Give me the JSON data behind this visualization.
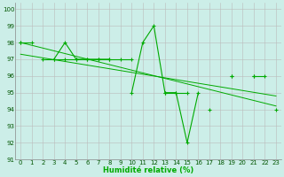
{
  "title": "",
  "xlabel": "Humidité relative (%)",
  "ylabel": "",
  "bg_color": "#cceee8",
  "grid_color": "#bbbbbb",
  "line_color": "#00aa00",
  "xlim": [
    -0.5,
    23.5
  ],
  "ylim": [
    91,
    100.4
  ],
  "yticks": [
    91,
    92,
    93,
    94,
    95,
    96,
    97,
    98,
    99,
    100
  ],
  "xticks": [
    0,
    1,
    2,
    3,
    4,
    5,
    6,
    7,
    8,
    9,
    10,
    11,
    12,
    13,
    14,
    15,
    16,
    17,
    18,
    19,
    20,
    21,
    22,
    23
  ],
  "series1": [
    98,
    98,
    null,
    97,
    98,
    97,
    97,
    97,
    97,
    null,
    95,
    98,
    99,
    95,
    95,
    92,
    95,
    null,
    null,
    96,
    null,
    96,
    96,
    null
  ],
  "series2": [
    98,
    null,
    97,
    97,
    97,
    97,
    97,
    97,
    97,
    97,
    97,
    null,
    null,
    95,
    95,
    95,
    null,
    94,
    null,
    96,
    null,
    96,
    null,
    94
  ],
  "trend1_x": [
    0,
    23
  ],
  "trend1_y": [
    98.0,
    94.2
  ],
  "trend2_x": [
    0,
    23
  ],
  "trend2_y": [
    97.3,
    94.8
  ]
}
